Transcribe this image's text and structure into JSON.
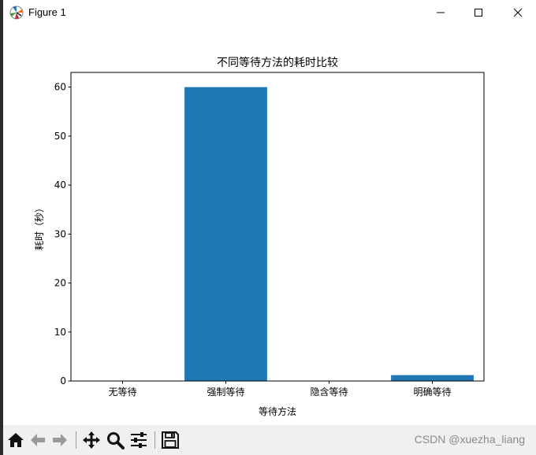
{
  "window": {
    "title": "Figure 1",
    "icon": "matplotlib-icon",
    "controls": [
      "minimize-icon",
      "maximize-icon",
      "close-icon"
    ]
  },
  "chart_data": {
    "type": "bar",
    "title": "不同等待方法的耗时比较",
    "xlabel": "等待方法",
    "ylabel": "耗时（秒）",
    "categories": [
      "无等待",
      "强制等待",
      "隐含等待",
      "明确等待"
    ],
    "values": [
      0,
      60,
      0,
      1.2
    ],
    "ylim": [
      0,
      63
    ],
    "yticks": [
      0,
      10,
      20,
      30,
      40,
      50,
      60
    ],
    "grid": false,
    "bar_color": "#1f77b4"
  },
  "toolbar": {
    "buttons": [
      "home-icon",
      "back-icon",
      "forward-icon",
      "pan-icon",
      "zoom-icon",
      "configure-subplots-icon",
      "save-icon"
    ]
  },
  "watermark": "CSDN @xuezha_liang"
}
